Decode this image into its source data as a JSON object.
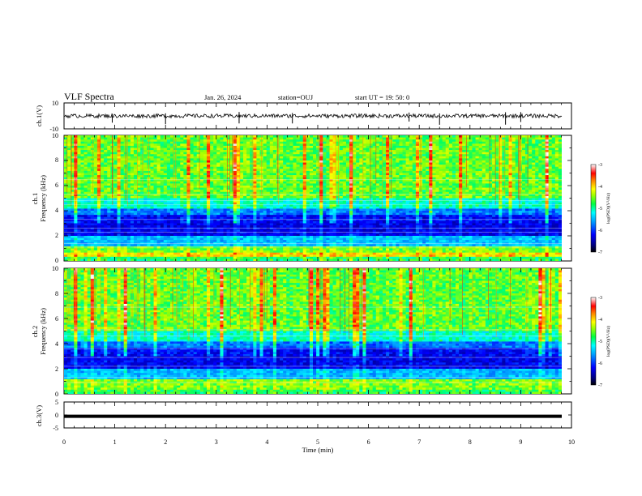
{
  "header": {
    "title": "VLF Spectra",
    "date": "Jan. 26, 2024",
    "station": "station=OUJ",
    "start": "start  UT =  19: 50: 0"
  },
  "chart_data": [
    {
      "type": "line",
      "name": "ch1-waveform",
      "ylabel": "ch.1(V)",
      "ylim": [
        -10,
        10
      ],
      "yticks": [
        "10",
        "-10"
      ],
      "trace_level": 0,
      "trace_amplitude_approx": 1.5
    },
    {
      "type": "heatmap",
      "name": "ch1-spectrogram",
      "ylabel_line1": "ch.1",
      "ylabel_line2": "Frequency  (kHz)",
      "ylim": [
        0,
        10
      ],
      "yticks": [
        "0",
        "2",
        "4",
        "6",
        "8",
        "10"
      ],
      "xlim": [
        0,
        9.8
      ],
      "colorbar": {
        "label": "log(PSD)(V²/Hz)",
        "range": [
          -7,
          -3
        ],
        "ticks": [
          "-3",
          "-4",
          "-5",
          "-6",
          "-7"
        ]
      }
    },
    {
      "type": "heatmap",
      "name": "ch2-spectrogram",
      "ylabel_line1": "ch.2",
      "ylabel_line2": "Frequency  (kHz)",
      "ylim": [
        0,
        10
      ],
      "yticks": [
        "0",
        "2",
        "4",
        "6",
        "8",
        "10"
      ],
      "xlim": [
        0,
        9.8
      ],
      "colorbar": {
        "label": "log(PSD)(V²/Hz)",
        "range": [
          -7,
          -3
        ],
        "ticks": [
          "-3",
          "-4",
          "-5",
          "-6",
          "-7"
        ]
      }
    },
    {
      "type": "line",
      "name": "ch3-waveform",
      "ylabel": "ch.3(V)",
      "ylim": [
        -5,
        5
      ],
      "yticks": [
        "5",
        "0",
        "-5"
      ],
      "trace_level": -0.5
    }
  ],
  "xaxis": {
    "label": "Time  (min)",
    "range": [
      0,
      10
    ],
    "ticks": [
      "0",
      "1",
      "2",
      "3",
      "4",
      "5",
      "6",
      "7",
      "8",
      "9",
      "10"
    ]
  },
  "colors": {
    "colormap": [
      "#000080",
      "#0000ff",
      "#00a0ff",
      "#00ffff",
      "#00ff80",
      "#a0ff00",
      "#ffff00",
      "#ff8000",
      "#ff0000",
      "#ffffff"
    ]
  }
}
